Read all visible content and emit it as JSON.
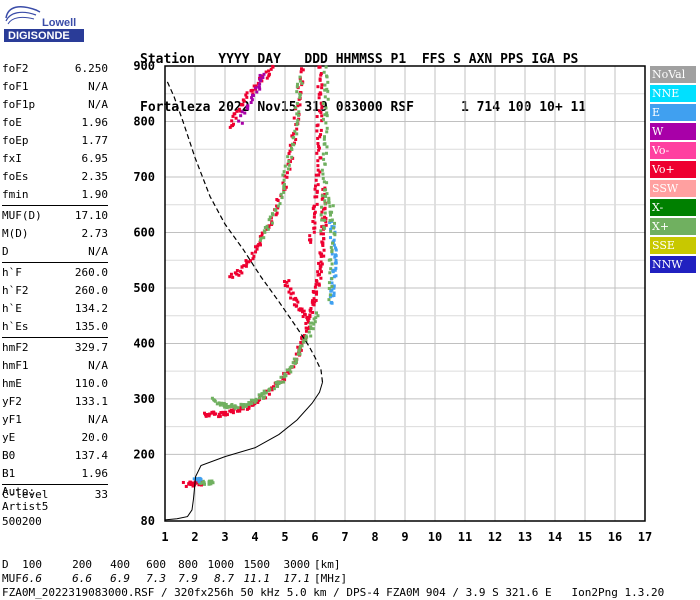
{
  "logo": {
    "line1": "Lowell",
    "line2": "DIGISONDE"
  },
  "header": {
    "line1": [
      "Station",
      "YYYY",
      "DAY",
      "DDD",
      "HHMMSS",
      "P1",
      "FFS",
      "S",
      "AXN",
      "PPS",
      "IGA",
      "PS"
    ],
    "line2": [
      "Fortaleza",
      "2022",
      "Nov15",
      "319",
      "083000",
      "RSF",
      "1",
      "714",
      "100",
      "10+",
      "11"
    ]
  },
  "params": [
    {
      "label": "foF2",
      "value": "6.250"
    },
    {
      "label": "foF1",
      "value": "N/A"
    },
    {
      "label": "foF1p",
      "value": "N/A"
    },
    {
      "label": "foE",
      "value": "1.96"
    },
    {
      "label": "foEp",
      "value": "1.77"
    },
    {
      "label": "fxI",
      "value": "6.95"
    },
    {
      "label": "foEs",
      "value": "2.35"
    },
    {
      "label": "fmin",
      "value": "1.90"
    },
    {
      "sep": true
    },
    {
      "label": "MUF(D)",
      "value": "17.10"
    },
    {
      "label": "M(D)",
      "value": "2.73"
    },
    {
      "label": "D",
      "value": "N/A"
    },
    {
      "sep": true
    },
    {
      "label": "h`F",
      "value": "260.0"
    },
    {
      "label": "h`F2",
      "value": "260.0"
    },
    {
      "label": "h`E",
      "value": "134.2"
    },
    {
      "label": "h`Es",
      "value": "135.0"
    },
    {
      "sep": true
    },
    {
      "label": "hmF2",
      "value": "329.7"
    },
    {
      "label": "hmF1",
      "value": "N/A"
    },
    {
      "label": "hmE",
      "value": "110.0"
    },
    {
      "label": "yF2",
      "value": "133.1"
    },
    {
      "label": "yF1",
      "value": "N/A"
    },
    {
      "label": "yE",
      "value": "20.0"
    },
    {
      "label": "B0",
      "value": "137.4"
    },
    {
      "label": "B1",
      "value": "1.96"
    },
    {
      "sep": true
    },
    {
      "label": "C-level",
      "value": "33"
    }
  ],
  "auto": {
    "line1": "Auto:",
    "line2": "Artist5",
    "line3": "500200"
  },
  "legend": [
    {
      "label": "NoVal",
      "color": "#a0a0a0",
      "text": "#ffffff"
    },
    {
      "label": "NNE",
      "color": "#00e0ff",
      "text": "#ffffff"
    },
    {
      "label": "E",
      "color": "#40a0f0",
      "text": "#ffffff"
    },
    {
      "label": "W",
      "color": "#a800a8",
      "text": "#ffffff"
    },
    {
      "label": "Vo-",
      "color": "#ff40a0",
      "text": "#ffffff"
    },
    {
      "label": "Vo+",
      "color": "#ee0030",
      "text": "#ffffff"
    },
    {
      "label": "SSW",
      "color": "#ffa0a0",
      "text": "#ffffff"
    },
    {
      "label": "X-",
      "color": "#008000",
      "text": "#ffffff"
    },
    {
      "label": "X+",
      "color": "#70b060",
      "text": "#ffffff"
    },
    {
      "label": "SSE",
      "color": "#c8c800",
      "text": "#ffffff"
    },
    {
      "label": "NNW",
      "color": "#2020c0",
      "text": "#ffffff"
    }
  ],
  "bottom": {
    "d_label": "D",
    "d_values": [
      "100",
      "200",
      "400",
      "600",
      "800",
      "1000",
      "1500",
      "3000"
    ],
    "d_unit": "[km]",
    "muf_label": "MUF",
    "muf_values": [
      "6.6",
      "6.6",
      "6.9",
      "7.3",
      "7.9",
      "8.7",
      "11.1",
      "17.1"
    ],
    "muf_unit": "[MHz]",
    "footer": "FZA0M_2022319083000.RSF / 320fx256h 50 kHz 5.0 km / DPS-4 FZA0M 904 / 3.9 S 321.6 E   Ion2Png 1.3.20"
  },
  "chart_data": {
    "type": "scatter",
    "x_range": [
      1,
      17
    ],
    "y_range": [
      80,
      900
    ],
    "x_ticks": [
      "1",
      "2",
      "3",
      "4",
      "5",
      "6",
      "7",
      "8",
      "9",
      "10",
      "11",
      "12",
      "13",
      "14",
      "15",
      "16",
      "17"
    ],
    "y_ticks": [
      "80",
      "200",
      "300",
      "400",
      "500",
      "600",
      "700",
      "800",
      "900"
    ],
    "y_tick_values": [
      80,
      200,
      300,
      400,
      500,
      600,
      700,
      800,
      900
    ],
    "grid": true,
    "profile_curve": [
      [
        1.0,
        82
      ],
      [
        1.4,
        84
      ],
      [
        1.75,
        88
      ],
      [
        1.9,
        100
      ],
      [
        1.95,
        120
      ],
      [
        2.02,
        160
      ],
      [
        2.2,
        180
      ],
      [
        3.0,
        196
      ],
      [
        4.0,
        212
      ],
      [
        4.8,
        236
      ],
      [
        5.4,
        262
      ],
      [
        5.9,
        292
      ],
      [
        6.15,
        312
      ],
      [
        6.25,
        330
      ],
      [
        6.2,
        352
      ],
      [
        6.0,
        375
      ],
      [
        5.8,
        395
      ],
      [
        5.4,
        428
      ],
      [
        4.8,
        475
      ],
      [
        4.2,
        520
      ],
      [
        3.6,
        570
      ],
      [
        3.0,
        615
      ],
      [
        2.5,
        665
      ],
      [
        2.0,
        735
      ],
      [
        1.6,
        800
      ],
      [
        1.3,
        845
      ],
      [
        1.05,
        875
      ]
    ],
    "traces": [
      {
        "color": "#ee0030",
        "points": [
          [
            2.35,
            272
          ],
          [
            2.6,
            272
          ],
          [
            2.9,
            273
          ],
          [
            3.2,
            276
          ],
          [
            3.5,
            281
          ],
          [
            3.8,
            288
          ],
          [
            4.1,
            297
          ],
          [
            4.4,
            308
          ],
          [
            4.7,
            322
          ],
          [
            4.95,
            336
          ],
          [
            5.15,
            352
          ],
          [
            5.35,
            372
          ],
          [
            5.5,
            392
          ],
          [
            5.65,
            412
          ],
          [
            5.78,
            436
          ],
          [
            5.9,
            462
          ],
          [
            6.0,
            488
          ],
          [
            6.1,
            512
          ],
          [
            6.18,
            538
          ],
          [
            6.24,
            562
          ],
          [
            6.28,
            590
          ],
          [
            6.3,
            620
          ],
          [
            6.32,
            650
          ],
          [
            6.33,
            680
          ]
        ]
      },
      {
        "color": "#70b060",
        "points": [
          [
            2.65,
            298
          ],
          [
            2.9,
            290
          ],
          [
            3.15,
            286
          ],
          [
            3.45,
            286
          ],
          [
            3.75,
            290
          ],
          [
            4.05,
            298
          ],
          [
            4.35,
            308
          ],
          [
            4.65,
            322
          ],
          [
            4.95,
            338
          ],
          [
            5.2,
            358
          ],
          [
            5.45,
            380
          ],
          [
            5.7,
            405
          ],
          [
            5.9,
            430
          ],
          [
            6.05,
            455
          ]
        ]
      },
      {
        "color": "#ee0030",
        "points": [
          [
            5.0,
            515
          ],
          [
            5.2,
            490
          ],
          [
            5.4,
            470
          ],
          [
            5.6,
            455
          ],
          [
            5.8,
            445
          ]
        ]
      },
      {
        "color": "#40a0f0",
        "points": [
          [
            6.55,
            470
          ],
          [
            6.6,
            500
          ],
          [
            6.65,
            530
          ],
          [
            6.65,
            560
          ],
          [
            6.6,
            590
          ],
          [
            6.55,
            620
          ]
        ]
      },
      {
        "color": "#70b060",
        "points": [
          [
            6.5,
            480
          ],
          [
            6.55,
            540
          ],
          [
            6.6,
            600
          ],
          [
            6.55,
            640
          ],
          [
            6.4,
            670
          ]
        ]
      },
      {
        "color": "#ee0030",
        "points": [
          [
            3.2,
            520
          ],
          [
            3.5,
            530
          ],
          [
            3.8,
            550
          ],
          [
            4.1,
            575
          ],
          [
            4.4,
            605
          ],
          [
            4.7,
            640
          ],
          [
            4.95,
            680
          ],
          [
            5.15,
            725
          ],
          [
            5.3,
            770
          ],
          [
            5.4,
            815
          ],
          [
            5.5,
            860
          ],
          [
            5.55,
            895
          ]
        ]
      },
      {
        "color": "#70b060",
        "points": [
          [
            4.2,
            585
          ],
          [
            4.5,
            615
          ],
          [
            4.8,
            655
          ],
          [
            5.0,
            700
          ],
          [
            5.2,
            745
          ],
          [
            5.35,
            790
          ],
          [
            5.45,
            840
          ],
          [
            5.5,
            880
          ]
        ]
      },
      {
        "color": "#ee0030",
        "points": [
          [
            3.15,
            790
          ],
          [
            3.4,
            815
          ],
          [
            3.7,
            840
          ],
          [
            4.0,
            860
          ],
          [
            4.3,
            880
          ],
          [
            4.6,
            898
          ]
        ]
      },
      {
        "color": "#a800a8",
        "points": [
          [
            3.5,
            800
          ],
          [
            3.8,
            830
          ],
          [
            4.1,
            860
          ],
          [
            4.3,
            885
          ]
        ]
      },
      {
        "color": "#ee0030",
        "points": [
          [
            1.65,
            145
          ],
          [
            1.9,
            146
          ],
          [
            2.1,
            148
          ],
          [
            2.2,
            150
          ]
        ]
      },
      {
        "color": "#70b060",
        "points": [
          [
            2.15,
            150
          ],
          [
            2.4,
            148
          ],
          [
            2.6,
            149
          ]
        ]
      },
      {
        "color": "#40a0f0",
        "points": [
          [
            2.0,
            155
          ],
          [
            2.2,
            155
          ]
        ]
      },
      {
        "color": "#ee0030",
        "points": [
          [
            5.85,
            580
          ],
          [
            5.95,
            620
          ],
          [
            6.05,
            660
          ],
          [
            6.1,
            700
          ],
          [
            6.12,
            740
          ],
          [
            6.14,
            780
          ],
          [
            6.15,
            820
          ],
          [
            6.16,
            860
          ],
          [
            6.17,
            898
          ]
        ]
      },
      {
        "color": "#70b060",
        "points": [
          [
            6.25,
            600
          ],
          [
            6.3,
            650
          ],
          [
            6.32,
            700
          ],
          [
            6.33,
            750
          ],
          [
            6.35,
            800
          ],
          [
            6.36,
            850
          ],
          [
            6.37,
            898
          ]
        ]
      }
    ]
  }
}
